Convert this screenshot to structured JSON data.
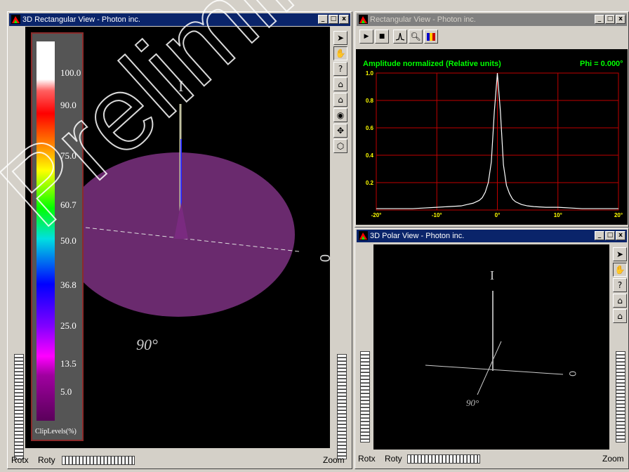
{
  "windows": {
    "rect3d": {
      "title": "3D Rectangular View - Photon inc.",
      "controls": [
        "_",
        "□",
        "x"
      ]
    },
    "rect": {
      "title": "Rectangular View - Photon inc.",
      "controls": [
        "_",
        "□",
        "x"
      ]
    },
    "polar3d": {
      "title": "3D Polar View - Photon inc.",
      "controls": [
        "_",
        "□",
        "x"
      ]
    }
  },
  "colorbar": {
    "levels": [
      "100.0",
      "90.0",
      "75.0",
      "60.7",
      "50.0",
      "36.8",
      "25.0",
      "13.5",
      "5.0"
    ],
    "title": "ClipLevels(%)"
  },
  "rect3d_view": {
    "angle_label": "90°",
    "side_label": "0"
  },
  "polar_view": {
    "angle_label": "90°",
    "side_label": "0"
  },
  "bottom_bars": {
    "left": {
      "rotx": "Rotx",
      "roty": "Roty",
      "zoom": "Zoom"
    },
    "right": {
      "rotx": "Rotx",
      "roty": "Roty",
      "zoom": "Zoom"
    }
  },
  "tools": {
    "rect3d": [
      "pointer-icon",
      "hand-icon",
      "help-icon",
      "home-icon",
      "set-home-icon",
      "eye-icon",
      "center-icon",
      "cube-icon"
    ],
    "polar3d": [
      "pointer-icon",
      "hand-icon",
      "help-icon",
      "home-icon",
      "set-home-icon"
    ]
  },
  "watermark": "Preliminary",
  "chart_data": {
    "type": "line",
    "title": "Amplitude normalized (Relative units)",
    "annotation": "Phi = 0.000°",
    "xlim": [
      -20,
      20
    ],
    "ylim": [
      0,
      1.0
    ],
    "x_ticks": [
      "-20°",
      "-10°",
      "0°",
      "10°",
      "20°"
    ],
    "x_tick_values": [
      -20,
      -10,
      0,
      10,
      20
    ],
    "y_ticks": [
      "1.0",
      "0.8",
      "0.6",
      "0.4",
      "0.2"
    ],
    "y_tick_values": [
      1.0,
      0.8,
      0.6,
      0.4,
      0.2
    ],
    "grid": true,
    "colors": {
      "background": "#000000",
      "grid": "#c00000",
      "line": "#ffffff",
      "text": "#00ff00",
      "ticks": "#ffff00"
    },
    "series": [
      {
        "x": [
          -20,
          -18,
          -16,
          -14,
          -12,
          -10,
          -8,
          -6,
          -5,
          -4,
          -3,
          -2.5,
          -2,
          -1.5,
          -1,
          -0.5,
          0,
          0.5,
          1,
          1.5,
          2,
          2.5,
          3,
          4,
          5,
          6,
          8,
          10,
          12,
          14,
          16,
          18,
          20
        ],
        "y": [
          0.01,
          0.01,
          0.01,
          0.01,
          0.015,
          0.02,
          0.025,
          0.03,
          0.04,
          0.05,
          0.07,
          0.09,
          0.13,
          0.2,
          0.35,
          0.72,
          1.0,
          0.72,
          0.33,
          0.18,
          0.12,
          0.08,
          0.06,
          0.04,
          0.03,
          0.025,
          0.02,
          0.02,
          0.015,
          0.01,
          0.01,
          0.01,
          0.01
        ]
      }
    ]
  }
}
